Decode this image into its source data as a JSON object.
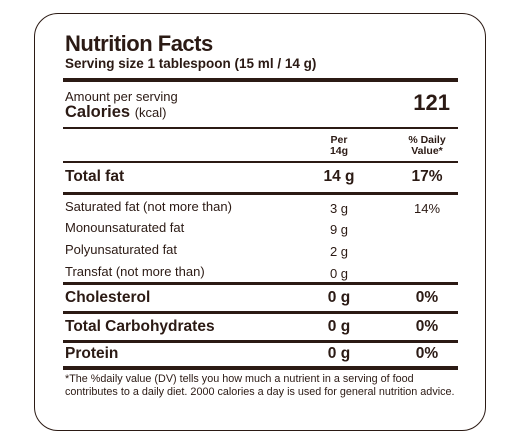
{
  "label": {
    "title": "Nutrition Facts",
    "serving": "Serving size 1 tablespoon (15 ml / 14 g)",
    "amount_per_serving": "Amount per serving",
    "calories_label": "Calories",
    "calories_unit": "(kcal)",
    "calories_value": "121",
    "col_per_line1": "Per",
    "col_per_line2": "14g",
    "col_dv_line1": "% Daily",
    "col_dv_line2": "Value*",
    "rows": [
      {
        "name": "Total fat",
        "amount": "14 g",
        "dv": "17%"
      },
      {
        "name": "Saturated fat (not more than)",
        "amount": "3 g",
        "dv": "14%"
      },
      {
        "name": "Monounsaturated fat",
        "amount": "9 g",
        "dv": ""
      },
      {
        "name": "Polyunsaturated fat",
        "amount": "2 g",
        "dv": ""
      },
      {
        "name": "Transfat (not more than)",
        "amount": "0 g",
        "dv": ""
      },
      {
        "name": "Cholesterol",
        "amount": "0 g",
        "dv": "0%"
      },
      {
        "name": "Total Carbohydrates",
        "amount": "0 g",
        "dv": "0%"
      },
      {
        "name": "Protein",
        "amount": "0 g",
        "dv": "0%"
      }
    ],
    "footnote": "*The %daily value (DV) tells you how much a nutrient in a serving of food contributes to a daily diet. 2000 calories a day is used for general nutrition advice."
  }
}
